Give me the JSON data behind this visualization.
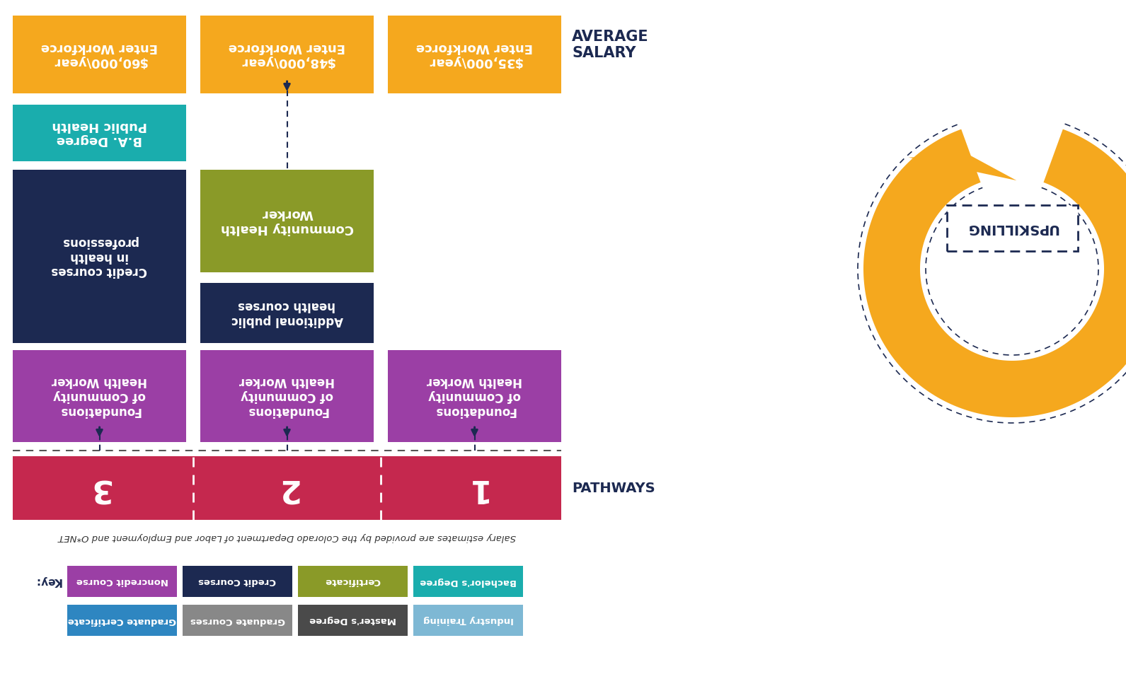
{
  "bg_color": "#ffffff",
  "navy_color": "#1c2951",
  "pathway_bar_color": "#c5284e",
  "orange_color": "#f5a81e",
  "teal_color": "#1aadad",
  "olive_color": "#8a9a28",
  "purple_color": "#9b3fa5",
  "light_blue_color": "#7eb8d4",
  "dark_gray_color": "#4a4a4a",
  "mid_gray_color": "#888888",
  "steel_blue_color": "#2e86c1",
  "key_items_row1": [
    {
      "label": "Noncredit Course",
      "color": "#9b3fa5"
    },
    {
      "label": "Credit Courses",
      "color": "#1c2951"
    },
    {
      "label": "Certificate",
      "color": "#8a9a28"
    },
    {
      "label": "Bachelor's Degree",
      "color": "#1aadad"
    }
  ],
  "key_items_row2": [
    {
      "label": "Graduate Certificate",
      "color": "#2e86c1"
    },
    {
      "label": "Graduate Courses",
      "color": "#888888"
    },
    {
      "label": "Master's Degree",
      "color": "#4a4a4a"
    },
    {
      "label": "Industry Training",
      "color": "#7eb8d4"
    }
  ],
  "footnote": "Salary estimates are provided by the Colorado Department of Labor and Employment and O*NET"
}
